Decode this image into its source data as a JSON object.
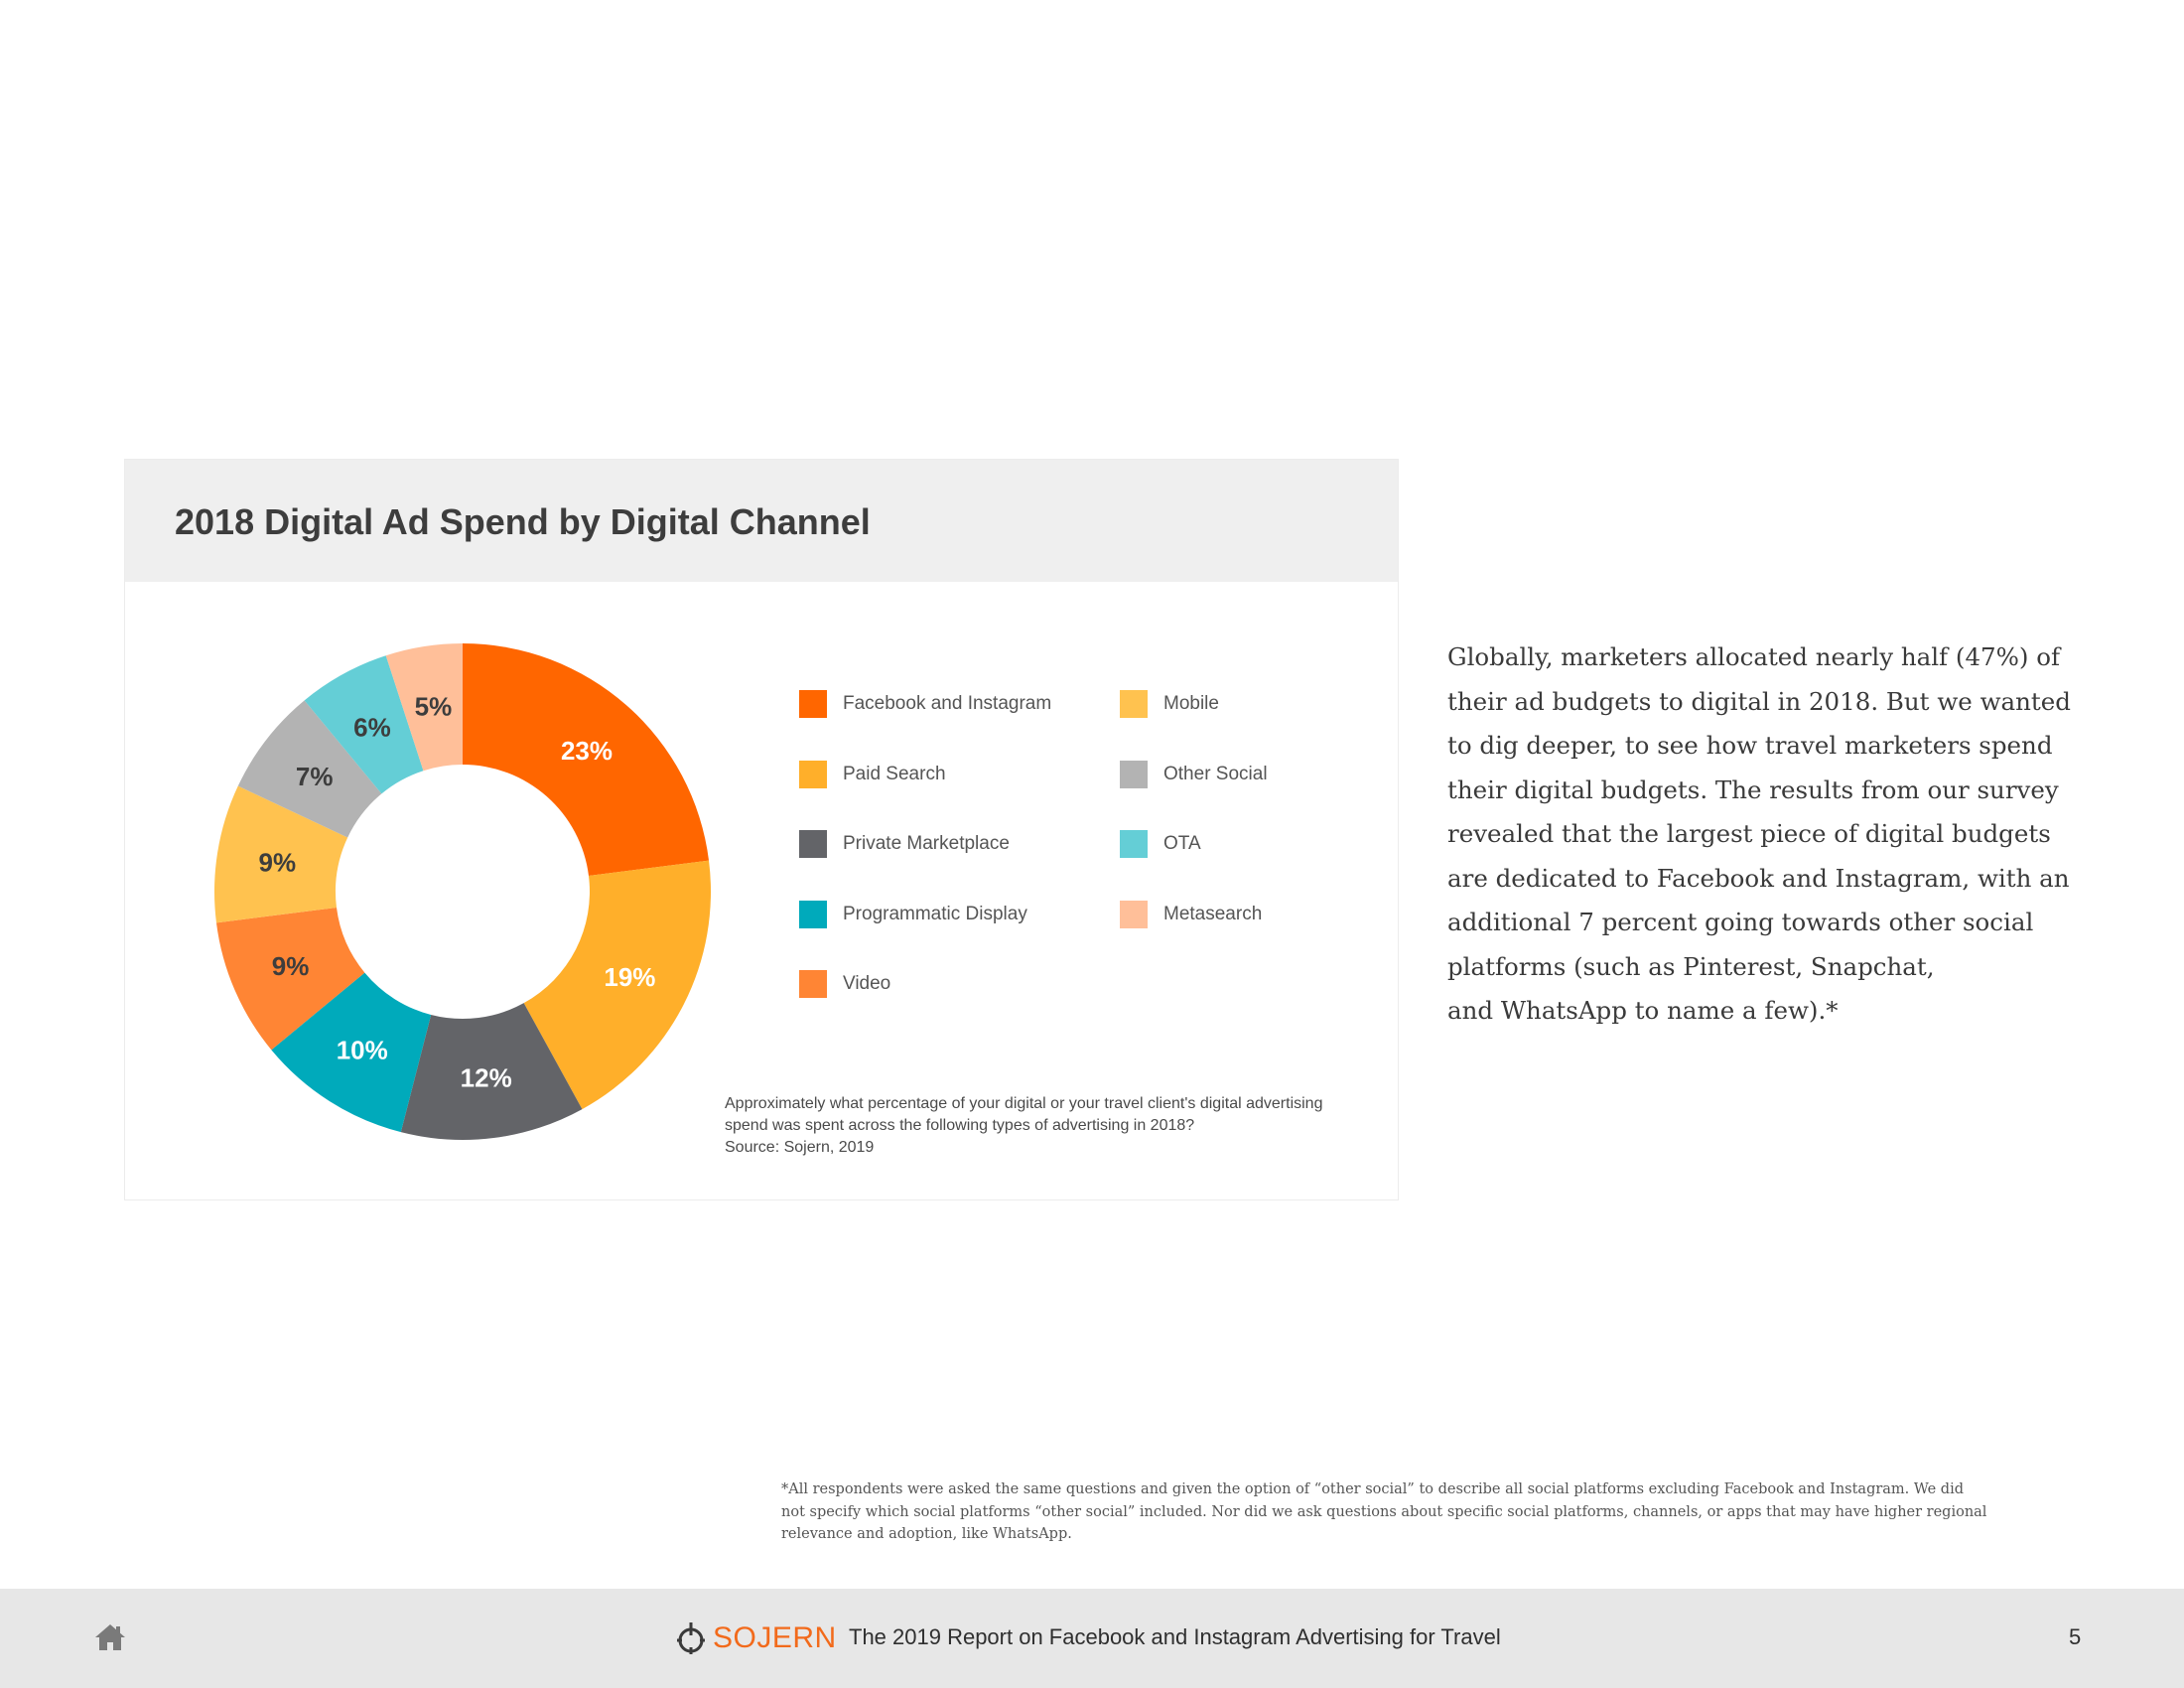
{
  "chart_data": {
    "type": "pie",
    "title": "2018 Digital Ad Spend by Digital Channel",
    "categories": [
      "Facebook and Instagram",
      "Paid Search",
      "Private Marketplace",
      "Programmatic Display",
      "Video",
      "Mobile",
      "Other Social",
      "OTA",
      "Metasearch"
    ],
    "values": [
      23,
      19,
      12,
      10,
      9,
      9,
      7,
      6,
      5
    ],
    "value_labels": [
      "23%",
      "19%",
      "12%",
      "10%",
      "9%",
      "9%",
      "7%",
      "6%",
      "5%"
    ],
    "colors": [
      "#ff6600",
      "#ffaf2a",
      "#636468",
      "#00aabb",
      "#ff8534",
      "#ffc24f",
      "#b3b3b3",
      "#64ced6",
      "#ffbf99"
    ],
    "label_colors": [
      "#ffffff",
      "#ffffff",
      "#ffffff",
      "#ffffff",
      "#3d3d3d",
      "#3d3d3d",
      "#3d3d3d",
      "#3d3d3d",
      "#3d3d3d"
    ],
    "donut": true,
    "legend_position": "right"
  },
  "caption": {
    "question_line1": "Approximately what percentage of your digital or your travel client's digital advertising",
    "question_line2": "spend was spent across the following types of advertising in 2018?",
    "source": "Source: Sojern, 2019"
  },
  "body_text": [
    "Globally, marketers allocated nearly half (47%) of",
    "their ad budgets to digital in 2018. But we wanted",
    "to dig deeper, to see how travel marketers spend",
    "their digital budgets. The results from our survey",
    "revealed that the largest piece of digital budgets",
    "are dedicated to Facebook and Instagram, with an",
    "additional 7 percent going towards other social",
    "platforms (such as Pinterest, Snapchat,",
    "and WhatsApp to name a few).*"
  ],
  "footnote": [
    "*All respondents were asked the same questions and given the option of “other social” to describe all social platforms excluding Facebook and Instagram. We did",
    " not specify which social platforms “other social” included. Nor did we ask questions about specific social platforms, channels, or apps that may have higher regional",
    " relevance and adoption, like WhatsApp."
  ],
  "footer": {
    "brand": "SOJERN",
    "title": "The 2019 Report on Facebook and Instagram Advertising for Travel",
    "page_number": "5",
    "brand_color": "#f26a1b",
    "home_icon": "home-icon",
    "logo_icon": "power-icon"
  }
}
